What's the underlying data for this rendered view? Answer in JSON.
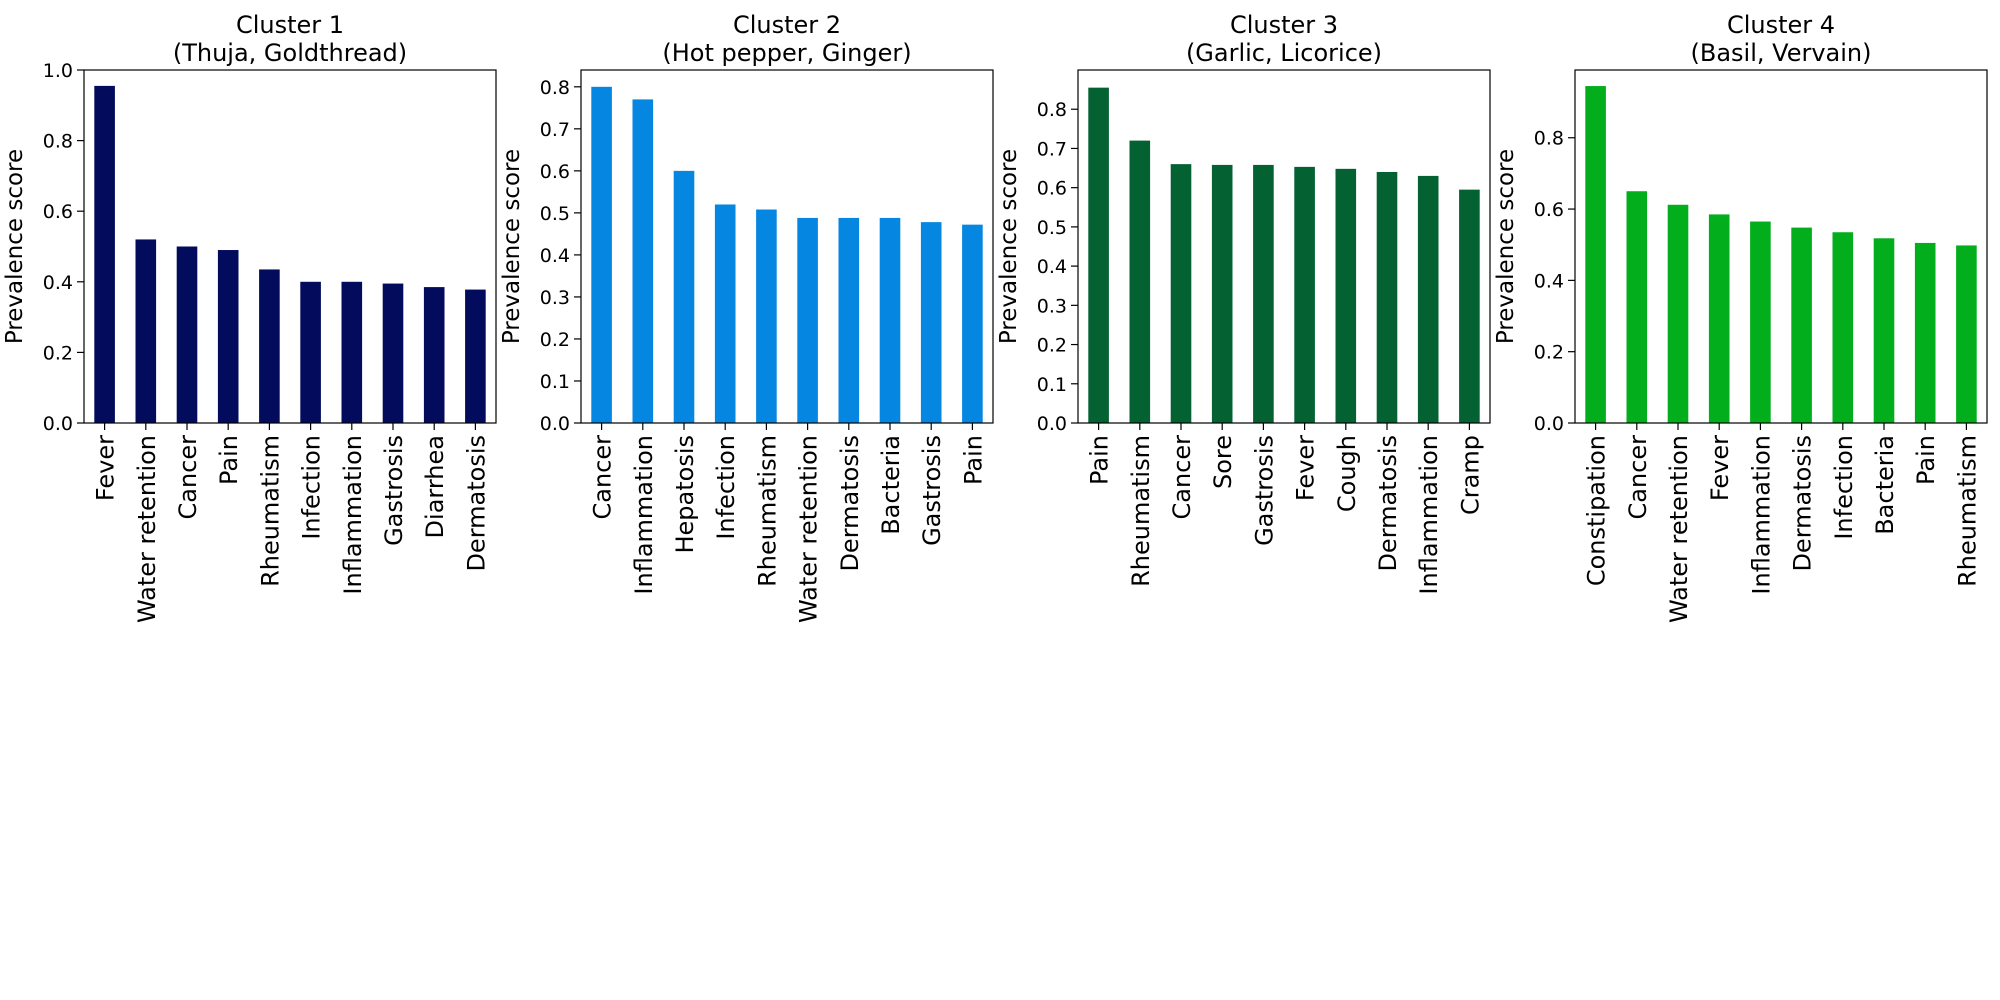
{
  "chart_data": [
    {
      "type": "bar",
      "title": "Cluster 1\n(Thuja, Goldthread)",
      "ylabel": "Prevalence score",
      "categories": [
        "Fever",
        "Water retention",
        "Cancer",
        "Pain",
        "Rheumatism",
        "Infection",
        "Inflammation",
        "Gastrosis",
        "Diarrhea",
        "Dermatosis"
      ],
      "values": [
        0.955,
        0.52,
        0.5,
        0.49,
        0.435,
        0.4,
        0.4,
        0.395,
        0.385,
        0.378
      ],
      "ylim": [
        0,
        1.0
      ],
      "yticks": [
        0.0,
        0.2,
        0.4,
        0.6,
        0.8,
        1.0
      ],
      "color": "#020b5c",
      "grid": false
    },
    {
      "type": "bar",
      "title": "Cluster 2\n(Hot pepper, Ginger)",
      "ylabel": "Prevalence score",
      "categories": [
        "Cancer",
        "Inflammation",
        "Hepatosis",
        "Infection",
        "Rheumatism",
        "Water retention",
        "Dermatosis",
        "Bacteria",
        "Gastrosis",
        "Pain"
      ],
      "values": [
        0.8,
        0.77,
        0.6,
        0.52,
        0.508,
        0.488,
        0.488,
        0.488,
        0.478,
        0.472
      ],
      "ylim": [
        0,
        0.84
      ],
      "yticks": [
        0.0,
        0.1,
        0.2,
        0.3,
        0.4,
        0.5,
        0.6,
        0.7,
        0.8
      ],
      "color": "#0586e0",
      "grid": false
    },
    {
      "type": "bar",
      "title": "Cluster 3\n(Garlic, Licorice)",
      "ylabel": "Prevalence score",
      "categories": [
        "Pain",
        "Rheumatism",
        "Cancer",
        "Sore",
        "Gastrosis",
        "Fever",
        "Cough",
        "Dermatosis",
        "Inflammation",
        "Cramp"
      ],
      "values": [
        0.855,
        0.72,
        0.66,
        0.658,
        0.658,
        0.653,
        0.648,
        0.64,
        0.63,
        0.595
      ],
      "ylim": [
        0,
        0.9
      ],
      "yticks": [
        0.0,
        0.1,
        0.2,
        0.3,
        0.4,
        0.5,
        0.6,
        0.7,
        0.8
      ],
      "color": "#036132",
      "grid": false
    },
    {
      "type": "bar",
      "title": "Cluster 4\n(Basil, Vervain)",
      "ylabel": "Prevalence score",
      "categories": [
        "Constipation",
        "Cancer",
        "Water retention",
        "Fever",
        "Inflammation",
        "Dermatosis",
        "Infection",
        "Bacteria",
        "Pain",
        "Rheumatism"
      ],
      "values": [
        0.945,
        0.65,
        0.612,
        0.585,
        0.565,
        0.548,
        0.535,
        0.518,
        0.505,
        0.498
      ],
      "ylim": [
        0,
        0.99
      ],
      "yticks": [
        0.0,
        0.2,
        0.4,
        0.6,
        0.8
      ],
      "color": "#03ae1c",
      "grid": false
    }
  ]
}
